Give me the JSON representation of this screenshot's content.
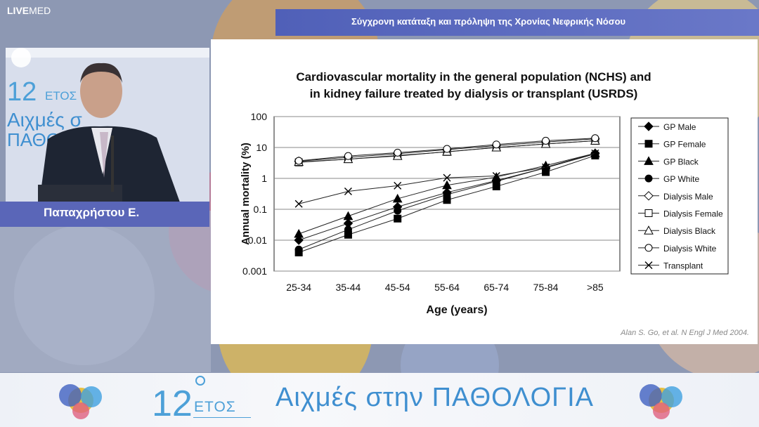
{
  "brand": {
    "logo_bold": "LIVE",
    "logo_rest": "MED"
  },
  "header": {
    "title": "Σύγχρονη κατάταξη και πρόληψη της Χρονίας Νεφρικής Νόσου"
  },
  "speaker": {
    "name": "Παπαχρήστου Ε."
  },
  "banner": {
    "number": "12",
    "etos": "ΕΤΟΣ",
    "slogan": "Αιχμές στην ΠΑΘΟΛΟΓΙΑ"
  },
  "slide": {
    "citation": "Alan S. Go, et al. N Engl J Med 2004."
  },
  "colors": {
    "topbar": "#5a66c0",
    "banner_text": "#3f8fd0",
    "namebar": "#5a66b8"
  },
  "chart_data": {
    "type": "line",
    "title_line1": "Cardiovascular mortality in the general population (NCHS) and",
    "title_line2": "in kidney failure treated by dialysis or transplant (USRDS)",
    "xlabel": "Age (years)",
    "ylabel": "Annual mortality (%)",
    "yscale": "log",
    "ylim": [
      0.001,
      100
    ],
    "yticks": [
      "100",
      "10",
      "1",
      "0.1",
      "0.01",
      "0.001"
    ],
    "ytick_values": [
      100,
      10,
      1,
      0.1,
      0.01,
      0.001
    ],
    "categories": [
      "25-34",
      "35-44",
      "45-54",
      "55-64",
      "65-74",
      "75-84",
      ">85"
    ],
    "grid": "horizontal",
    "legend_position": "right",
    "series": [
      {
        "name": "GP Male",
        "marker": "diamond-filled",
        "values": [
          0.01,
          0.035,
          0.12,
          0.35,
          0.85,
          2.2,
          6.5
        ]
      },
      {
        "name": "GP Female",
        "marker": "square-filled",
        "values": [
          0.004,
          0.015,
          0.05,
          0.2,
          0.55,
          1.6,
          5.5
        ]
      },
      {
        "name": "GP Black",
        "marker": "triangle-filled",
        "values": [
          0.016,
          0.06,
          0.22,
          0.6,
          1.1,
          2.6,
          6.5
        ]
      },
      {
        "name": "GP White",
        "marker": "circle-filled",
        "values": [
          0.005,
          0.022,
          0.09,
          0.3,
          0.8,
          2.2,
          6.2
        ]
      },
      {
        "name": "Dialysis Male",
        "marker": "diamond-open",
        "values": [
          3.6,
          4.8,
          6.3,
          8.5,
          11.5,
          15,
          19
        ]
      },
      {
        "name": "Dialysis Female",
        "marker": "square-open",
        "values": [
          3.3,
          4.2,
          5.5,
          7.2,
          10,
          13,
          16.5
        ]
      },
      {
        "name": "Dialysis Black",
        "marker": "triangle-open",
        "values": [
          3.4,
          4.2,
          5.3,
          7.3,
          10,
          13,
          16.5
        ]
      },
      {
        "name": "Dialysis White",
        "marker": "circle-open",
        "values": [
          3.7,
          5.3,
          6.8,
          9,
          12.5,
          16.5,
          20
        ]
      },
      {
        "name": "Transplant",
        "marker": "x",
        "values": [
          0.15,
          0.38,
          0.58,
          1.05,
          1.2,
          2.3,
          6.5
        ]
      }
    ]
  }
}
